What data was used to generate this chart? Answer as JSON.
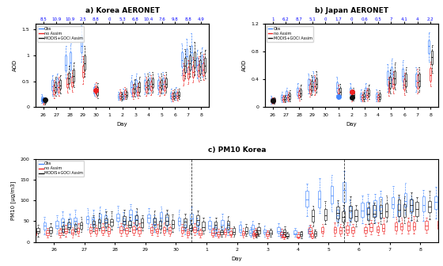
{
  "title_a": "a) Korea AERONET",
  "title_b": "b) Japan AERONET",
  "title_c": "c) PM10 Korea",
  "xlabel": "Day",
  "ylabel_aod": "AOD",
  "ylabel_pm10": "PM10 [μg/m3]",
  "days_a": [
    26,
    27,
    28,
    29,
    30,
    1,
    2,
    3,
    4,
    5,
    6,
    7,
    8
  ],
  "top_labels_a": [
    "8.5",
    "10.9",
    "10.9",
    "2.5",
    "8.8",
    "0",
    "5.3",
    "6.8",
    "10.4",
    "7.6",
    "9.8",
    "8.8",
    "4.9"
  ],
  "days_b": [
    26,
    27,
    28,
    29,
    30,
    1,
    2,
    3,
    4,
    5,
    6,
    7,
    8
  ],
  "top_labels_b": [
    "1",
    "6.2",
    "8.7",
    "5.1",
    "0",
    "1.7",
    "0",
    "0.6",
    "0.5",
    "7",
    "4.1",
    "4",
    "2.2"
  ],
  "days_c": [
    26,
    27,
    28,
    29,
    30,
    1,
    2,
    3,
    4,
    5,
    6,
    7,
    8
  ],
  "color_obs": "#4488FF",
  "color_noassim": "#EE2222",
  "color_assim": "#111111",
  "korea_aod": {
    "obs_medians": [
      0.15,
      0.4,
      0.42,
      0.82,
      0.86,
      1.18,
      0.32,
      null,
      0.2,
      0.22,
      0.38,
      0.4,
      0.42,
      0.44,
      0.42,
      0.44,
      0.22,
      0.24,
      0.9,
      0.98,
      1.05,
      0.82,
      0.85
    ],
    "obs_q1": [
      0.12,
      0.32,
      0.35,
      0.7,
      0.72,
      1.05,
      0.27,
      null,
      0.17,
      0.18,
      0.28,
      0.32,
      0.35,
      0.36,
      0.35,
      0.36,
      0.18,
      0.2,
      0.78,
      0.85,
      0.9,
      0.7,
      0.72
    ],
    "obs_q3": [
      0.2,
      0.52,
      0.55,
      1.0,
      1.05,
      1.38,
      0.38,
      null,
      0.25,
      0.28,
      0.5,
      0.52,
      0.52,
      0.55,
      0.52,
      0.55,
      0.28,
      0.3,
      1.05,
      1.12,
      1.18,
      0.95,
      1.0
    ],
    "obs_whislo": [
      0.08,
      0.22,
      0.25,
      0.55,
      0.58,
      0.88,
      0.22,
      null,
      0.14,
      0.15,
      0.2,
      0.22,
      0.25,
      0.26,
      0.25,
      0.26,
      0.12,
      0.14,
      0.62,
      0.68,
      0.72,
      0.55,
      0.58
    ],
    "obs_whishi": [
      0.25,
      0.62,
      0.65,
      1.18,
      1.22,
      1.58,
      0.45,
      null,
      0.3,
      0.35,
      0.62,
      0.65,
      0.65,
      0.68,
      0.65,
      0.68,
      0.35,
      0.38,
      1.22,
      1.32,
      1.42,
      1.1,
      1.15
    ],
    "no_medians": [
      0.1,
      0.32,
      0.38,
      0.45,
      0.48,
      0.68,
      0.32,
      null,
      0.22,
      0.25,
      0.28,
      0.3,
      0.38,
      0.4,
      0.38,
      0.4,
      0.2,
      0.22,
      0.62,
      0.65,
      0.68,
      0.7,
      0.72
    ],
    "no_q1": [
      0.08,
      0.25,
      0.3,
      0.38,
      0.4,
      0.58,
      0.26,
      null,
      0.18,
      0.2,
      0.22,
      0.24,
      0.3,
      0.32,
      0.3,
      0.32,
      0.16,
      0.18,
      0.52,
      0.55,
      0.58,
      0.6,
      0.62
    ],
    "no_q3": [
      0.13,
      0.42,
      0.48,
      0.55,
      0.58,
      0.8,
      0.4,
      null,
      0.28,
      0.32,
      0.36,
      0.38,
      0.48,
      0.5,
      0.48,
      0.5,
      0.26,
      0.28,
      0.72,
      0.76,
      0.8,
      0.82,
      0.85
    ],
    "no_whislo": [
      0.05,
      0.18,
      0.22,
      0.28,
      0.3,
      0.44,
      0.2,
      null,
      0.14,
      0.16,
      0.16,
      0.18,
      0.22,
      0.24,
      0.22,
      0.24,
      0.12,
      0.13,
      0.42,
      0.45,
      0.48,
      0.5,
      0.52
    ],
    "no_whishi": [
      0.16,
      0.52,
      0.58,
      0.65,
      0.7,
      0.98,
      0.48,
      null,
      0.34,
      0.38,
      0.44,
      0.46,
      0.58,
      0.62,
      0.58,
      0.62,
      0.32,
      0.34,
      0.85,
      0.9,
      0.96,
      0.98,
      1.02
    ],
    "assim_medians": [
      0.1,
      0.38,
      0.42,
      0.55,
      0.6,
      0.85,
      0.3,
      null,
      0.2,
      0.24,
      0.35,
      0.38,
      0.42,
      0.45,
      0.42,
      0.45,
      0.22,
      0.24,
      0.8,
      0.85,
      0.9,
      0.78,
      0.8
    ],
    "assim_q1": [
      0.08,
      0.3,
      0.35,
      0.46,
      0.5,
      0.72,
      0.24,
      null,
      0.16,
      0.2,
      0.28,
      0.3,
      0.35,
      0.38,
      0.35,
      0.38,
      0.18,
      0.2,
      0.68,
      0.72,
      0.76,
      0.65,
      0.68
    ],
    "assim_q3": [
      0.13,
      0.48,
      0.52,
      0.66,
      0.72,
      1.0,
      0.38,
      null,
      0.25,
      0.3,
      0.44,
      0.48,
      0.52,
      0.56,
      0.52,
      0.56,
      0.28,
      0.3,
      0.95,
      1.0,
      1.05,
      0.9,
      0.95
    ],
    "assim_whislo": [
      0.05,
      0.22,
      0.26,
      0.35,
      0.38,
      0.58,
      0.18,
      null,
      0.13,
      0.16,
      0.2,
      0.22,
      0.26,
      0.28,
      0.26,
      0.28,
      0.14,
      0.16,
      0.55,
      0.58,
      0.62,
      0.52,
      0.55
    ],
    "assim_whishi": [
      0.16,
      0.58,
      0.62,
      0.8,
      0.86,
      1.18,
      0.46,
      null,
      0.3,
      0.36,
      0.54,
      0.58,
      0.64,
      0.68,
      0.64,
      0.68,
      0.34,
      0.36,
      1.12,
      1.18,
      1.25,
      1.05,
      1.1
    ],
    "obs_dots": [
      0.15,
      null,
      null,
      null,
      null,
      null,
      null,
      null,
      null,
      null,
      null,
      null,
      null,
      null,
      null,
      null,
      null,
      null,
      null,
      null,
      null,
      null,
      null
    ],
    "no_dots": [
      null,
      null,
      null,
      null,
      null,
      null,
      null,
      null,
      null,
      null,
      null,
      null,
      null,
      null,
      null,
      null,
      null,
      null,
      null,
      null,
      null,
      null,
      null
    ],
    "day_map": [
      0,
      1,
      1,
      2,
      2,
      3,
      4,
      5,
      6,
      6,
      7,
      7,
      8,
      8,
      9,
      9,
      10,
      10,
      11,
      11,
      11,
      12,
      12
    ]
  },
  "japan_aod": {
    "obs_medians": [
      0.1,
      0.14,
      0.18,
      0.22,
      0.32,
      0.36,
      null,
      0.28,
      0.22,
      0.15,
      0.22,
      0.15,
      0.4,
      0.48,
      0.45,
      0.38,
      0.88
    ],
    "obs_q1": [
      0.08,
      0.11,
      0.14,
      0.18,
      0.26,
      0.3,
      null,
      0.22,
      0.18,
      0.12,
      0.18,
      0.12,
      0.32,
      0.4,
      0.38,
      0.3,
      0.78
    ],
    "obs_q3": [
      0.13,
      0.18,
      0.23,
      0.28,
      0.4,
      0.44,
      null,
      0.36,
      0.28,
      0.2,
      0.28,
      0.2,
      0.52,
      0.58,
      0.55,
      0.48,
      0.96
    ],
    "obs_whislo": [
      0.05,
      0.07,
      0.09,
      0.13,
      0.2,
      0.22,
      null,
      0.18,
      0.12,
      0.08,
      0.12,
      0.08,
      0.22,
      0.3,
      0.28,
      0.22,
      0.65
    ],
    "obs_whishi": [
      0.16,
      0.22,
      0.28,
      0.35,
      0.48,
      0.52,
      null,
      0.44,
      0.35,
      0.26,
      0.35,
      0.26,
      0.62,
      0.7,
      0.68,
      0.58,
      1.08
    ],
    "no_medians": [
      0.1,
      0.12,
      0.14,
      0.18,
      0.26,
      0.3,
      null,
      0.2,
      0.15,
      0.14,
      0.18,
      0.14,
      0.28,
      0.34,
      0.32,
      0.36,
      0.46
    ],
    "no_q1": [
      0.08,
      0.1,
      0.11,
      0.14,
      0.2,
      0.24,
      null,
      0.16,
      0.12,
      0.11,
      0.14,
      0.11,
      0.22,
      0.28,
      0.26,
      0.28,
      0.38
    ],
    "no_q3": [
      0.13,
      0.15,
      0.18,
      0.23,
      0.33,
      0.38,
      null,
      0.26,
      0.2,
      0.18,
      0.24,
      0.18,
      0.36,
      0.42,
      0.4,
      0.46,
      0.56
    ],
    "no_whislo": [
      0.05,
      0.07,
      0.08,
      0.1,
      0.15,
      0.18,
      null,
      0.12,
      0.08,
      0.08,
      0.1,
      0.08,
      0.16,
      0.2,
      0.18,
      0.2,
      0.3
    ],
    "no_whishi": [
      0.14,
      0.18,
      0.22,
      0.28,
      0.4,
      0.46,
      null,
      0.32,
      0.24,
      0.22,
      0.28,
      0.22,
      0.44,
      0.52,
      0.5,
      0.55,
      0.66
    ],
    "assim_medians": [
      0.1,
      0.12,
      0.16,
      0.2,
      0.3,
      0.34,
      null,
      0.22,
      0.18,
      0.15,
      0.2,
      0.15,
      0.35,
      0.42,
      0.38,
      0.38,
      0.72
    ],
    "assim_q1": [
      0.08,
      0.1,
      0.12,
      0.16,
      0.24,
      0.28,
      null,
      0.18,
      0.14,
      0.12,
      0.16,
      0.12,
      0.28,
      0.34,
      0.3,
      0.3,
      0.62
    ],
    "assim_q3": [
      0.13,
      0.15,
      0.2,
      0.26,
      0.38,
      0.42,
      null,
      0.28,
      0.23,
      0.2,
      0.26,
      0.2,
      0.44,
      0.52,
      0.48,
      0.48,
      0.82
    ],
    "assim_whislo": [
      0.05,
      0.07,
      0.09,
      0.12,
      0.18,
      0.21,
      null,
      0.14,
      0.1,
      0.08,
      0.12,
      0.08,
      0.2,
      0.26,
      0.22,
      0.22,
      0.5
    ],
    "assim_whishi": [
      0.14,
      0.18,
      0.24,
      0.32,
      0.46,
      0.52,
      null,
      0.34,
      0.28,
      0.24,
      0.32,
      0.24,
      0.54,
      0.64,
      0.58,
      0.58,
      0.9
    ],
    "day_map": [
      0,
      1,
      1,
      2,
      3,
      3,
      4,
      5,
      6,
      7,
      7,
      8,
      9,
      9,
      10,
      11,
      12
    ]
  }
}
